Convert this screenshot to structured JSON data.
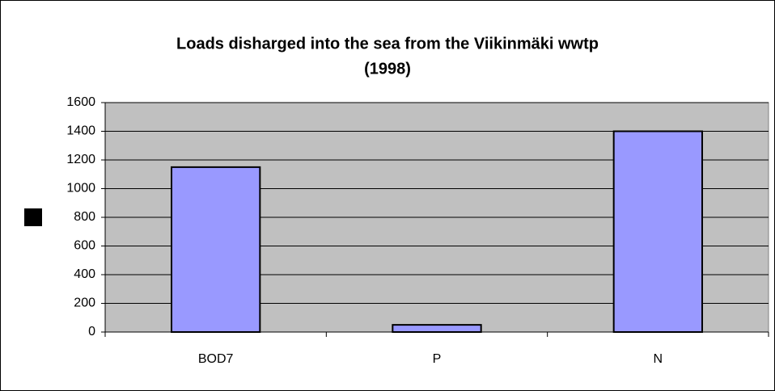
{
  "chart_data": {
    "type": "bar",
    "title": [
      "Loads disharged into the sea from the Viikinmäki wwtp",
      "(1998)"
    ],
    "categories": [
      "BOD7",
      "P",
      "N"
    ],
    "values": [
      1150,
      50,
      1400
    ],
    "color": "#9999ff",
    "ylim": [
      0,
      1600
    ],
    "yticks": [
      0,
      200,
      400,
      600,
      800,
      1000,
      1200,
      1400,
      1600
    ],
    "grid": true
  }
}
